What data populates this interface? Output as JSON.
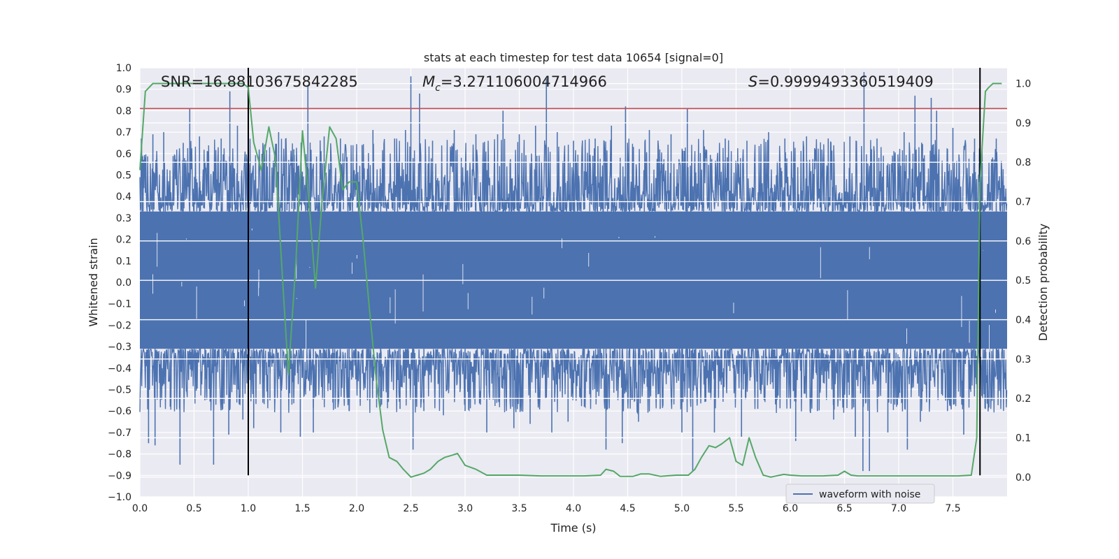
{
  "chart_data": {
    "type": "line",
    "title": "stats at each timestep for test data 10654 [signal=0]",
    "xlabel": "Time (s)",
    "ylabel": "Whitened strain",
    "y2label": "Detection probability",
    "xlim": [
      0.0,
      8.0
    ],
    "ylim": [
      -1.0,
      1.0
    ],
    "y2lim": [
      -0.05,
      1.04
    ],
    "x_ticks": [
      "0.0",
      "0.5",
      "1.0",
      "1.5",
      "2.0",
      "2.5",
      "3.0",
      "3.5",
      "4.0",
      "4.5",
      "5.0",
      "5.5",
      "6.0",
      "6.5",
      "7.0",
      "7.5"
    ],
    "y_ticks": [
      "1.0",
      "0.9",
      "0.8",
      "0.7",
      "0.6",
      "0.5",
      "0.4",
      "0.3",
      "0.2",
      "0.1",
      "0.0",
      "−0.1",
      "−0.2",
      "−0.3",
      "−0.4",
      "−0.5",
      "−0.6",
      "−0.7",
      "−0.8",
      "−0.9",
      "−1.0"
    ],
    "y2_ticks": [
      "1.0",
      "0.9",
      "0.8",
      "0.7",
      "0.6",
      "0.5",
      "0.4",
      "0.3",
      "0.2",
      "0.1",
      "0.0"
    ],
    "annotations": {
      "snr": "SNR=16.88103675842285",
      "mc_symbol": "M",
      "mc_sub": "c",
      "mc_value": "=3.271106004714966",
      "s_symbol": "S",
      "s_value": "=0.9999493360519409"
    },
    "threshold_line": {
      "y": 0.81,
      "color": "#c44e52"
    },
    "vertical_lines": [
      {
        "x": 1.0,
        "ymin": -0.9,
        "ymax": 1.0,
        "color": "#000000"
      },
      {
        "x": 7.75,
        "ymin": -0.9,
        "ymax": 1.0,
        "color": "#000000"
      }
    ],
    "waveform": {
      "name": "waveform with noise",
      "color": "#4c72b0",
      "band_upper": 0.33,
      "band_lower": -0.31,
      "spikes": [
        [
          0.02,
          0.53
        ],
        [
          0.08,
          -0.75
        ],
        [
          0.12,
          0.69
        ],
        [
          0.14,
          -0.76
        ],
        [
          0.22,
          0.7
        ],
        [
          0.28,
          -0.58
        ],
        [
          0.37,
          -0.85
        ],
        [
          0.4,
          0.65
        ],
        [
          0.46,
          0.81
        ],
        [
          0.55,
          0.68
        ],
        [
          0.6,
          -0.55
        ],
        [
          0.68,
          -0.85
        ],
        [
          0.75,
          0.67
        ],
        [
          0.82,
          -0.71
        ],
        [
          0.83,
          0.89
        ],
        [
          0.9,
          0.73
        ],
        [
          0.95,
          -0.64
        ],
        [
          1.05,
          -0.68
        ],
        [
          1.15,
          0.58
        ],
        [
          1.2,
          -0.55
        ],
        [
          1.28,
          0.7
        ],
        [
          1.3,
          -0.7
        ],
        [
          1.42,
          0.62
        ],
        [
          1.48,
          -0.72
        ],
        [
          1.55,
          0.92
        ],
        [
          1.6,
          -0.7
        ],
        [
          1.7,
          0.68
        ],
        [
          1.78,
          -0.56
        ],
        [
          1.85,
          0.67
        ],
        [
          1.93,
          -0.6
        ],
        [
          2.05,
          0.64
        ],
        [
          2.1,
          -0.55
        ],
        [
          2.15,
          0.71
        ],
        [
          2.22,
          -0.58
        ],
        [
          2.35,
          0.67
        ],
        [
          2.4,
          -0.59
        ],
        [
          2.45,
          0.71
        ],
        [
          2.5,
          0.96
        ],
        [
          2.52,
          -0.78
        ],
        [
          2.58,
          0.88
        ],
        [
          2.62,
          -0.6
        ],
        [
          2.7,
          0.66
        ],
        [
          2.8,
          -0.62
        ],
        [
          2.9,
          0.71
        ],
        [
          3.0,
          -0.6
        ],
        [
          3.1,
          0.69
        ],
        [
          3.2,
          -0.7
        ],
        [
          3.3,
          0.69
        ],
        [
          3.35,
          0.8
        ],
        [
          3.45,
          -0.68
        ],
        [
          3.5,
          0.69
        ],
        [
          3.6,
          -0.66
        ],
        [
          3.65,
          0.73
        ],
        [
          3.75,
          0.95
        ],
        [
          3.8,
          -0.7
        ],
        [
          3.85,
          0.7
        ],
        [
          3.95,
          -0.65
        ],
        [
          4.0,
          0.66
        ],
        [
          4.1,
          -0.58
        ],
        [
          4.2,
          0.67
        ],
        [
          4.3,
          -0.78
        ],
        [
          4.35,
          0.73
        ],
        [
          4.45,
          -0.75
        ],
        [
          4.48,
          0.82
        ],
        [
          4.6,
          -0.65
        ],
        [
          4.7,
          0.71
        ],
        [
          4.8,
          -0.59
        ],
        [
          4.9,
          0.69
        ],
        [
          5.0,
          -0.7
        ],
        [
          5.05,
          0.81
        ],
        [
          5.1,
          -0.88
        ],
        [
          5.2,
          0.71
        ],
        [
          5.3,
          -0.7
        ],
        [
          5.4,
          0.67
        ],
        [
          5.55,
          -0.72
        ],
        [
          5.6,
          0.66
        ],
        [
          5.7,
          -0.59
        ],
        [
          5.8,
          0.7
        ],
        [
          5.95,
          0.67
        ],
        [
          6.05,
          -0.74
        ],
        [
          6.15,
          0.68
        ],
        [
          6.25,
          -0.6
        ],
        [
          6.35,
          0.67
        ],
        [
          6.4,
          -0.64
        ],
        [
          6.55,
          0.68
        ],
        [
          6.6,
          -0.72
        ],
        [
          6.67,
          -0.88
        ],
        [
          6.68,
          0.98
        ],
        [
          6.73,
          -0.88
        ],
        [
          6.8,
          0.67
        ],
        [
          6.9,
          -0.7
        ],
        [
          7.05,
          0.7
        ],
        [
          7.08,
          -0.78
        ],
        [
          7.15,
          0.87
        ],
        [
          7.2,
          -0.65
        ],
        [
          7.3,
          0.86
        ],
        [
          7.35,
          0.8
        ],
        [
          7.45,
          -0.6
        ],
        [
          7.5,
          0.72
        ],
        [
          7.6,
          -0.71
        ],
        [
          7.7,
          0.67
        ],
        [
          7.8,
          -0.59
        ],
        [
          7.9,
          0.67
        ],
        [
          7.96,
          0.47
        ]
      ]
    },
    "detection_probability": {
      "color": "#55a868",
      "points": [
        [
          0.0,
          0.78
        ],
        [
          0.05,
          0.98
        ],
        [
          0.12,
          1.0
        ],
        [
          0.25,
          1.0
        ],
        [
          0.5,
          1.0
        ],
        [
          0.75,
          1.0
        ],
        [
          0.95,
          1.0
        ],
        [
          1.0,
          0.99
        ],
        [
          1.05,
          0.85
        ],
        [
          1.12,
          0.78
        ],
        [
          1.19,
          0.89
        ],
        [
          1.25,
          0.81
        ],
        [
          1.31,
          0.53
        ],
        [
          1.37,
          0.26
        ],
        [
          1.44,
          0.55
        ],
        [
          1.5,
          0.88
        ],
        [
          1.56,
          0.7
        ],
        [
          1.62,
          0.48
        ],
        [
          1.68,
          0.7
        ],
        [
          1.75,
          0.89
        ],
        [
          1.81,
          0.86
        ],
        [
          1.87,
          0.73
        ],
        [
          1.93,
          0.75
        ],
        [
          2.0,
          0.75
        ],
        [
          2.06,
          0.6
        ],
        [
          2.12,
          0.42
        ],
        [
          2.18,
          0.25
        ],
        [
          2.24,
          0.12
        ],
        [
          2.3,
          0.05
        ],
        [
          2.37,
          0.04
        ],
        [
          2.43,
          0.02
        ],
        [
          2.5,
          0.0
        ],
        [
          2.56,
          0.005
        ],
        [
          2.62,
          0.01
        ],
        [
          2.68,
          0.02
        ],
        [
          2.75,
          0.04
        ],
        [
          2.81,
          0.05
        ],
        [
          2.87,
          0.055
        ],
        [
          2.93,
          0.06
        ],
        [
          3.0,
          0.03
        ],
        [
          3.1,
          0.02
        ],
        [
          3.2,
          0.005
        ],
        [
          3.3,
          0.005
        ],
        [
          3.4,
          0.005
        ],
        [
          3.5,
          0.005
        ],
        [
          3.7,
          0.003
        ],
        [
          3.9,
          0.003
        ],
        [
          4.1,
          0.003
        ],
        [
          4.25,
          0.005
        ],
        [
          4.3,
          0.02
        ],
        [
          4.37,
          0.015
        ],
        [
          4.43,
          0.002
        ],
        [
          4.55,
          0.002
        ],
        [
          4.62,
          0.008
        ],
        [
          4.7,
          0.008
        ],
        [
          4.8,
          0.002
        ],
        [
          4.95,
          0.005
        ],
        [
          5.06,
          0.005
        ],
        [
          5.12,
          0.02
        ],
        [
          5.18,
          0.05
        ],
        [
          5.25,
          0.08
        ],
        [
          5.31,
          0.075
        ],
        [
          5.37,
          0.085
        ],
        [
          5.44,
          0.1
        ],
        [
          5.5,
          0.04
        ],
        [
          5.56,
          0.03
        ],
        [
          5.62,
          0.1
        ],
        [
          5.68,
          0.05
        ],
        [
          5.75,
          0.005
        ],
        [
          5.82,
          0.0
        ],
        [
          5.94,
          0.007
        ],
        [
          6.0,
          0.005
        ],
        [
          6.1,
          0.003
        ],
        [
          6.3,
          0.003
        ],
        [
          6.44,
          0.005
        ],
        [
          6.5,
          0.015
        ],
        [
          6.56,
          0.005
        ],
        [
          6.62,
          0.003
        ],
        [
          6.8,
          0.003
        ],
        [
          7.0,
          0.003
        ],
        [
          7.2,
          0.003
        ],
        [
          7.4,
          0.003
        ],
        [
          7.55,
          0.003
        ],
        [
          7.67,
          0.005
        ],
        [
          7.72,
          0.1
        ],
        [
          7.75,
          0.75
        ],
        [
          7.8,
          0.98
        ],
        [
          7.83,
          0.99
        ],
        [
          7.87,
          1.0
        ],
        [
          7.95,
          1.0
        ]
      ]
    },
    "legend": {
      "entries": [
        "waveform with noise"
      ],
      "placement": "lower-right"
    }
  }
}
